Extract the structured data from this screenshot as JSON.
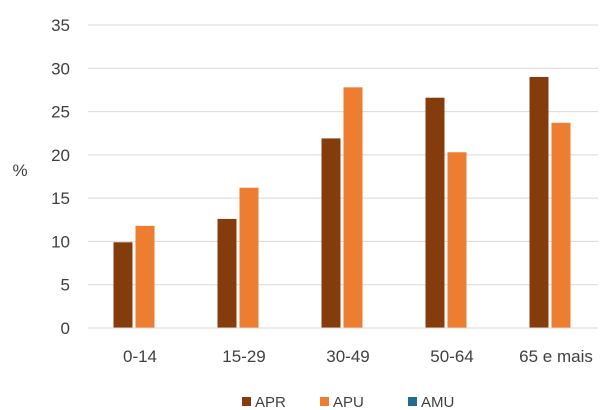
{
  "chart_data": {
    "type": "bar",
    "categories": [
      "0-14",
      "15-29",
      "30-49",
      "50-64",
      "65 e mais"
    ],
    "series": [
      {
        "name": "APR",
        "color": "#843C0C",
        "values": [
          9.9,
          12.6,
          21.9,
          26.6,
          29.0
        ]
      },
      {
        "name": "APU",
        "color": "#ED7D31",
        "values": [
          11.8,
          16.2,
          27.8,
          20.3,
          23.7
        ]
      },
      {
        "name": "AMU",
        "color": "#1F6E8C",
        "values": [
          null,
          null,
          null,
          null,
          null
        ]
      }
    ],
    "title": "",
    "xlabel": "",
    "ylabel": "%",
    "ylim": [
      0,
      35
    ],
    "yticks": [
      0,
      5,
      10,
      15,
      20,
      25,
      30,
      35
    ],
    "grid": true,
    "legend": "bottom"
  }
}
